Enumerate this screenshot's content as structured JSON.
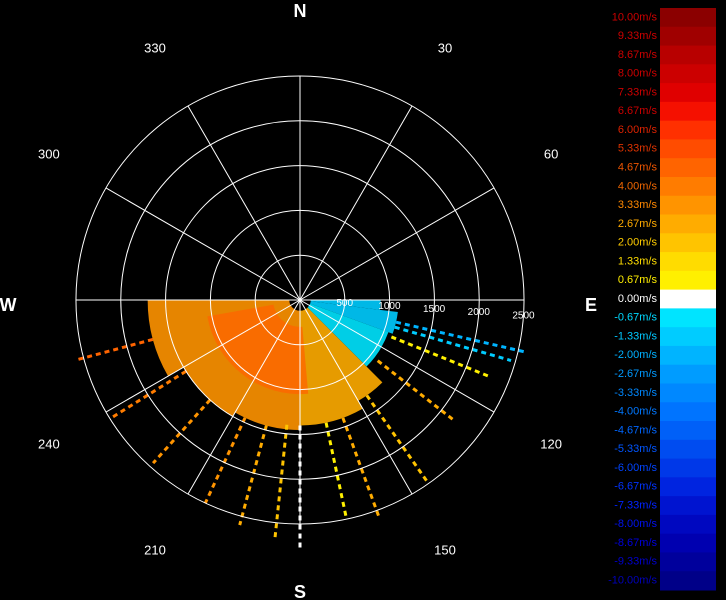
{
  "chart_data": {
    "type": "polar-radar-velocity",
    "directions": [
      {
        "label": "N",
        "angle": 0
      },
      {
        "label": "E",
        "angle": 90
      },
      {
        "label": "S",
        "angle": 180
      },
      {
        "label": "W",
        "angle": 270
      }
    ],
    "angle_labels": [
      {
        "label": "30",
        "angle": 30
      },
      {
        "label": "60",
        "angle": 60
      },
      {
        "label": "120",
        "angle": 120
      },
      {
        "label": "150",
        "angle": 150
      },
      {
        "label": "210",
        "angle": 210
      },
      {
        "label": "240",
        "angle": 240
      },
      {
        "label": "300",
        "angle": 300
      },
      {
        "label": "330",
        "angle": 330
      }
    ],
    "spokes_every_deg": 30,
    "range_rings": [
      500,
      1000,
      1500,
      2000,
      2500
    ],
    "range_max": 2600,
    "range_labels": [
      {
        "label": "500",
        "value": 500
      },
      {
        "label": "1000",
        "value": 1000
      },
      {
        "label": "1500",
        "value": 1500
      },
      {
        "label": "2000",
        "value": 2000
      },
      {
        "label": "2500",
        "value": 2500
      }
    ],
    "range_label_bearing": 94,
    "colorbar": {
      "min": -10,
      "max": 10,
      "labels": [
        "10.00m/s",
        "9.33m/s",
        "8.67m/s",
        "8.00m/s",
        "7.33m/s",
        "6.67m/s",
        "6.00m/s",
        "5.33m/s",
        "4.67m/s",
        "4.00m/s",
        "3.33m/s",
        "2.67m/s",
        "2.00m/s",
        "1.33m/s",
        "0.67m/s",
        "0.00m/s",
        "-0.67m/s",
        "-1.33m/s",
        "-2.00m/s",
        "-2.67m/s",
        "-3.33m/s",
        "-4.00m/s",
        "-4.67m/s",
        "-5.33m/s",
        "-6.00m/s",
        "-6.67m/s",
        "-7.33m/s",
        "-8.00m/s",
        "-8.67m/s",
        "-9.33m/s",
        "-10.00m/s"
      ],
      "colors": [
        "#8b0000",
        "#a00000",
        "#b80000",
        "#cc0000",
        "#e00000",
        "#f51000",
        "#ff3000",
        "#ff4c00",
        "#ff6400",
        "#ff7c00",
        "#ff9400",
        "#ffac00",
        "#ffc400",
        "#ffdc00",
        "#fff000",
        "#ffffff",
        "#00e4ff",
        "#00ccff",
        "#00b4ff",
        "#009cff",
        "#0088ff",
        "#0074ff",
        "#0060f8",
        "#004cf0",
        "#0038e8",
        "#0024e0",
        "#0014d0",
        "#0008c0",
        "#0000b0",
        "#00009c",
        "#000088"
      ],
      "label_colors": [
        "#cc0000",
        "#cc0000",
        "#cc0000",
        "#cc0000",
        "#cc0000",
        "#cc0000",
        "#dd2200",
        "#dd3300",
        "#ee5500",
        "#ee6600",
        "#ff8800",
        "#ffaa00",
        "#ffcc00",
        "#ffdd00",
        "#ffee00",
        "#ffffff",
        "#00d8ff",
        "#00c8ff",
        "#00b0ff",
        "#0099ff",
        "#0088ff",
        "#0077ff",
        "#0066ff",
        "#0055ff",
        "#0044ff",
        "#0033ff",
        "#0022ff",
        "#0011ee",
        "#0000dd",
        "#0000cc",
        "#0000bb"
      ]
    },
    "sectors": [
      {
        "from": 90,
        "to": 97,
        "range_min": 120,
        "range_max": 900,
        "velocity": -1.5
      },
      {
        "from": 97,
        "to": 110,
        "range_min": 120,
        "range_max": 1100,
        "velocity": -1.2
      },
      {
        "from": 110,
        "to": 135,
        "range_min": 120,
        "range_max": 1050,
        "velocity": -0.9
      },
      {
        "from": 135,
        "to": 150,
        "range_min": 120,
        "range_max": 1300,
        "velocity": 2.6
      },
      {
        "from": 150,
        "to": 180,
        "range_min": 120,
        "range_max": 1400,
        "velocity": 3.0
      },
      {
        "from": 180,
        "to": 210,
        "range_min": 120,
        "range_max": 1450,
        "velocity": 3.4
      },
      {
        "from": 210,
        "to": 240,
        "range_min": 120,
        "range_max": 1500,
        "velocity": 3.6
      },
      {
        "from": 240,
        "to": 270,
        "range_min": 120,
        "range_max": 1700,
        "velocity": 3.2
      }
    ],
    "core": {
      "from": 175,
      "to": 260,
      "range_min": 300,
      "range_max": 1050,
      "velocity": 4.5
    },
    "streaks": [
      {
        "bearing": 103,
        "range_min": 1100,
        "range_max": 2600,
        "velocity": -2.0
      },
      {
        "bearing": 106,
        "range_min": 1100,
        "range_max": 2450,
        "velocity": -1.5
      },
      {
        "bearing": 112,
        "range_min": 1100,
        "range_max": 2300,
        "velocity": 0.7
      },
      {
        "bearing": 128,
        "range_min": 1100,
        "range_max": 2200,
        "velocity": 2.7
      },
      {
        "bearing": 145,
        "range_min": 1300,
        "range_max": 2500,
        "velocity": 2.2
      },
      {
        "bearing": 160,
        "range_min": 1400,
        "range_max": 2600,
        "velocity": 2.5
      },
      {
        "bearing": 168,
        "range_min": 1400,
        "range_max": 2500,
        "velocity": 1.0
      },
      {
        "bearing": 180,
        "range_min": 1400,
        "range_max": 2800,
        "velocity": 0.0
      },
      {
        "bearing": 186,
        "range_min": 1400,
        "range_max": 2700,
        "velocity": 2.0
      },
      {
        "bearing": 195,
        "range_min": 1450,
        "range_max": 2600,
        "velocity": 3.0
      },
      {
        "bearing": 205,
        "range_min": 1450,
        "range_max": 2500,
        "velocity": 3.4
      },
      {
        "bearing": 222,
        "range_min": 1500,
        "range_max": 2450,
        "velocity": 3.6
      },
      {
        "bearing": 238,
        "range_min": 1500,
        "range_max": 2500,
        "velocity": 4.0
      },
      {
        "bearing": 255,
        "range_min": 1700,
        "range_max": 2600,
        "velocity": 5.0
      }
    ]
  }
}
